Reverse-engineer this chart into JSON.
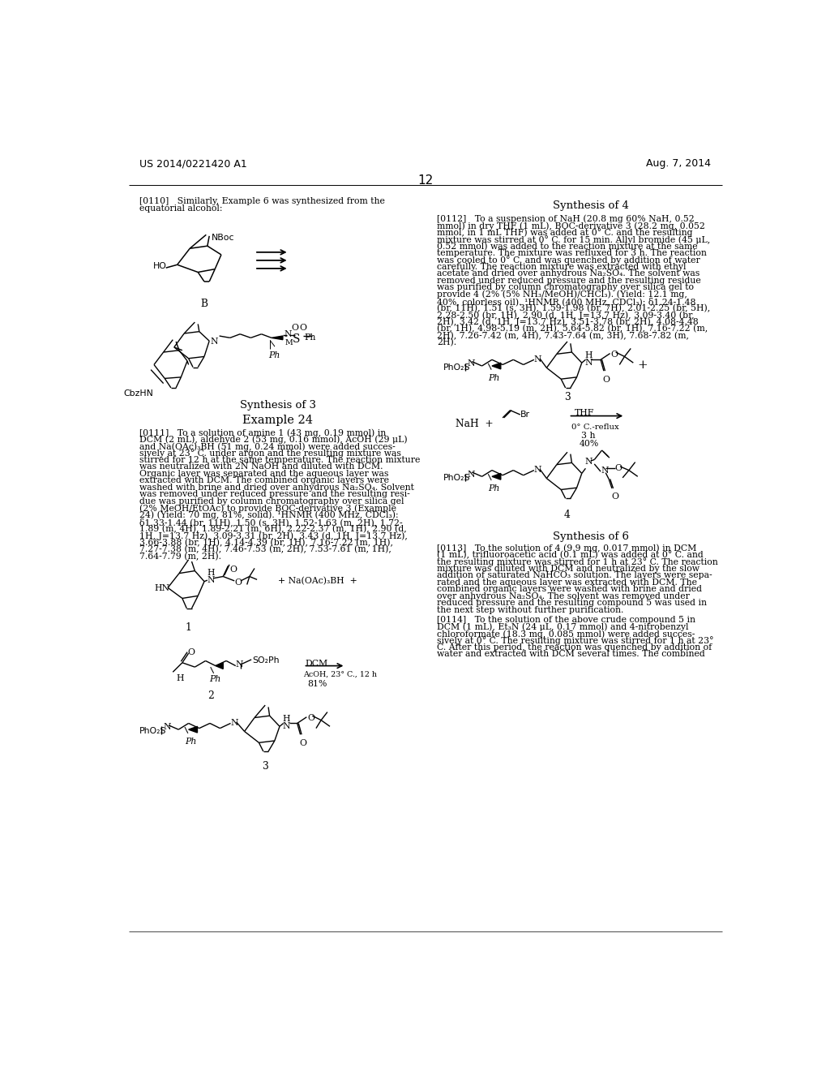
{
  "background_color": "#ffffff",
  "page_number": "12",
  "header_left": "US 2014/0221420 A1",
  "header_right": "Aug. 7, 2014",
  "body_fs": 7.8,
  "label_fs": 9.5,
  "header_fs": 9.0,
  "para_0110_L1": "[0110]   Similarly, Example 6 was synthesized from the",
  "para_0110_L2": "equatorial alcohol:",
  "synthesis3_label": "Synthesis of 3",
  "example24_label": "Example 24",
  "para_0111": [
    "[0111]   To a solution of amine 1 (43 mg, 0.19 mmol) in",
    "DCM (2 mL), aldehyde 2 (53 mg, 0.16 mmol), AcOH (29 μL)",
    "and Na(OAc)₃BH (51 mg, 0.24 mmol) were added succes-",
    "sively at 23° C. under argon and the resulting mixture was",
    "stirred for 12 h at the same temperature. The reaction mixture",
    "was neutralized with 2N NaOH and diluted with DCM.",
    "Organic layer was separated and the aqueous layer was",
    "extracted with DCM. The combined organic layers were",
    "washed with brine and dried over anhydrous Na₂SO₄. Solvent",
    "was removed under reduced pressure and the resulting resi-",
    "due was purified by column chromatography over silica gel",
    "(2% MeOH/EtOAc) to provide BOC-derivative 3 (Example",
    "24) (Yield: 70 mg, 81%, solid). ¹HNMR (400 MHz, CDCl₃):",
    "δ1.33-1.44 (br, 11H), 1.50 (s, 3H), 1.52-1.63 (m, 2H), 1.72-",
    "1.89 (m, 4H), 1.89-2.21 (m, 6H), 2.22-2.37 (m, 1H), 2.90 (d,",
    "1H, J=13.7 Hz), 3.09-3.31 (br, 2H), 3.43 (d, 1H, J=13.7 Hz),",
    "3.66-3.88 (br, 1H), 4.14-4.39 (br, 1H), 7.16-7.22 (m, 1H),",
    "7.27-7.38 (m, 4H), 7.46-7.53 (m, 2H), 7.53-7.61 (m, 1H),",
    "7.64-7.79 (m, 2H)."
  ],
  "synthesis4_label": "Synthesis of 4",
  "para_0112": [
    "[0112]   To a suspension of NaH (20.8 mg 60% NaH, 0.52",
    "mmol) in dry THF (1 mL), BOC-derivative 3 (28.2 mg, 0.052",
    "mmol, in 1 mL THF) was added at 0° C. and the resulting",
    "mixture was stirred at 0° C. for 15 min. Allyl bromide (45 μL,",
    "0.52 mmol) was added to the reaction mixture at the same",
    "temperature. The mixture was refluxed for 3 h. The reaction",
    "was cooled to 0° C. and was quenched by addition of water",
    "carefully. The reaction mixture was extracted with ethyl",
    "acetate and dried over anhydrous Na₂SO₄. The solvent was",
    "removed under reduced pressure and the resulting residue",
    "was purified by column chromatography over silica gel to",
    "provide 4 (2% (5% NH₃/MeOH)/CHCl₃). (Yield: 12.1 mg,",
    "40%, colorless oil). ¹HNMR (400 MHz, CDCl₃): δ1.24-1.48",
    "(br, 11H), 1.51 (s, 3H), 1.59-1.98 (br, 7H), 2.01-2.25 (br, 5H),",
    "2.28-2.50 (br, 1H), 2.90 (d, 1H, J=13.7 Hz), 3.09-3.40 (br,",
    "2H), 3.42 (d, 1H, J=13.7 Hz), 3.51-3.78 (br, 2H), 4.08-4.48",
    "(br, 1H), 4.98-5.19 (m, 2H), 5.64-5.82 (br, 1H), 7.16-7.22 (m,",
    "2H), 7.26-7.42 (m, 4H), 7.43-7.64 (m, 3H), 7.68-7.82 (m,",
    "2H)."
  ],
  "synthesis6_label": "Synthesis of 6",
  "para_0113": [
    "[0113]   To the solution of 4 (9.9 mg, 0.017 mmol) in DCM",
    "(1 mL), trifluoroacetic acid (0.1 mL) was added at 0° C. and",
    "the resulting mixture was stirred for 1 h at 23° C. The reaction",
    "mixture was diluted with DCM and neutralized by the slow",
    "addition of saturated NaHCO₃ solution. The layers were sepa-",
    "rated and the aqueous layer was extracted with DCM. The",
    "combined organic layers were washed with brine and dried",
    "over anhydrous Na₂SO₄. The solvent was removed under",
    "reduced pressure and the resulting compound 5 was used in",
    "the next step without further purification."
  ],
  "para_0114": [
    "[0114]   To the solution of the above crude compound 5 in",
    "DCM (1 mL), Et₃N (24 μL, 0.17 mmol) and 4-nitrobenzyl",
    "chloroformate (18.3 mg, 0.085 mmol) were added succes-",
    "sively at 0° C. The resulting mixture was stirred for 1 h at 23°",
    "C. After this period, the reaction was quenched by addition of",
    "water and extracted with DCM several times. The combined"
  ]
}
